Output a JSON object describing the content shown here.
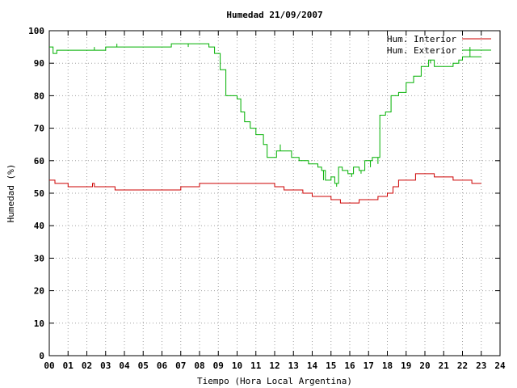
{
  "chart_data": {
    "type": "line",
    "title": "Humedad 21/09/2007",
    "xlabel": "Tiempo (Hora Local Argentina)",
    "ylabel": "Humedad (%)",
    "xlim": [
      0,
      24
    ],
    "ylim": [
      0,
      100
    ],
    "x_tick_labels": [
      "00",
      "01",
      "02",
      "03",
      "04",
      "05",
      "06",
      "07",
      "08",
      "09",
      "10",
      "11",
      "12",
      "13",
      "14",
      "15",
      "16",
      "17",
      "18",
      "19",
      "20",
      "21",
      "22",
      "23",
      "24"
    ],
    "y_tick_labels": [
      "0",
      "10",
      "20",
      "30",
      "40",
      "50",
      "60",
      "70",
      "80",
      "90",
      "100"
    ],
    "grid": true,
    "legend_position": "top-right",
    "series": [
      {
        "name": "Hum. Interior",
        "color": "#cc0000",
        "x": [
          0.0,
          0.2,
          0.3,
          0.6,
          1.0,
          1.5,
          2.0,
          2.3,
          2.4,
          3.0,
          3.5,
          4.0,
          5.0,
          6.0,
          6.5,
          7.0,
          7.5,
          8.0,
          9.0,
          10.0,
          11.0,
          12.0,
          12.5,
          13.0,
          13.5,
          14.0,
          14.5,
          15.0,
          15.5,
          16.0,
          16.5,
          17.0,
          17.5,
          18.0,
          18.3,
          18.6,
          19.0,
          19.5,
          20.0,
          20.5,
          21.0,
          21.5,
          22.0,
          22.5,
          23.0
        ],
        "y": [
          54,
          54,
          53,
          53,
          52,
          52,
          52,
          53,
          52,
          52,
          51,
          51,
          51,
          51,
          51,
          52,
          52,
          53,
          53,
          53,
          53,
          52,
          51,
          51,
          50,
          49,
          49,
          48,
          47,
          47,
          48,
          48,
          49,
          50,
          52,
          54,
          54,
          56,
          56,
          55,
          55,
          54,
          54,
          53,
          53
        ]
      },
      {
        "name": "Hum. Exterior",
        "color": "#00b000",
        "x": [
          0.0,
          0.2,
          0.4,
          0.6,
          1.0,
          1.5,
          2.0,
          2.5,
          3.0,
          3.5,
          4.0,
          5.0,
          6.0,
          6.5,
          7.0,
          7.5,
          8.0,
          8.5,
          8.8,
          9.1,
          9.4,
          9.6,
          10.0,
          10.2,
          10.4,
          10.7,
          11.0,
          11.4,
          11.6,
          11.9,
          12.1,
          12.5,
          12.9,
          13.3,
          13.8,
          14.3,
          14.5,
          14.7,
          15.0,
          15.2,
          15.4,
          15.6,
          15.9,
          16.2,
          16.5,
          16.8,
          17.0,
          17.2,
          17.4,
          17.6,
          17.9,
          18.2,
          18.6,
          19.0,
          19.4,
          19.8,
          20.2,
          20.5,
          21.0,
          21.5,
          21.8,
          22.0,
          22.5,
          23.0
        ],
        "y": [
          95,
          93,
          94,
          94,
          94,
          94,
          94,
          94,
          95,
          95,
          95,
          95,
          95,
          96,
          96,
          96,
          96,
          95,
          93,
          88,
          80,
          80,
          79,
          75,
          72,
          70,
          68,
          65,
          61,
          61,
          63,
          63,
          61,
          60,
          59,
          58,
          57,
          54,
          55,
          53,
          58,
          57,
          56,
          58,
          57,
          60,
          60,
          61,
          61,
          74,
          75,
          80,
          81,
          84,
          86,
          89,
          91,
          89,
          89,
          90,
          91,
          92,
          92,
          92
        ],
        "spikes": [
          [
            0.6,
            94
          ],
          [
            2.4,
            95
          ],
          [
            3.6,
            96
          ],
          [
            7.4,
            95
          ],
          [
            12.3,
            65
          ],
          [
            14.6,
            54
          ],
          [
            15.3,
            52
          ],
          [
            16.1,
            55
          ],
          [
            16.6,
            56
          ],
          [
            17.1,
            58
          ],
          [
            17.5,
            59
          ],
          [
            20.3,
            90
          ],
          [
            22.4,
            95
          ]
        ]
      }
    ]
  }
}
